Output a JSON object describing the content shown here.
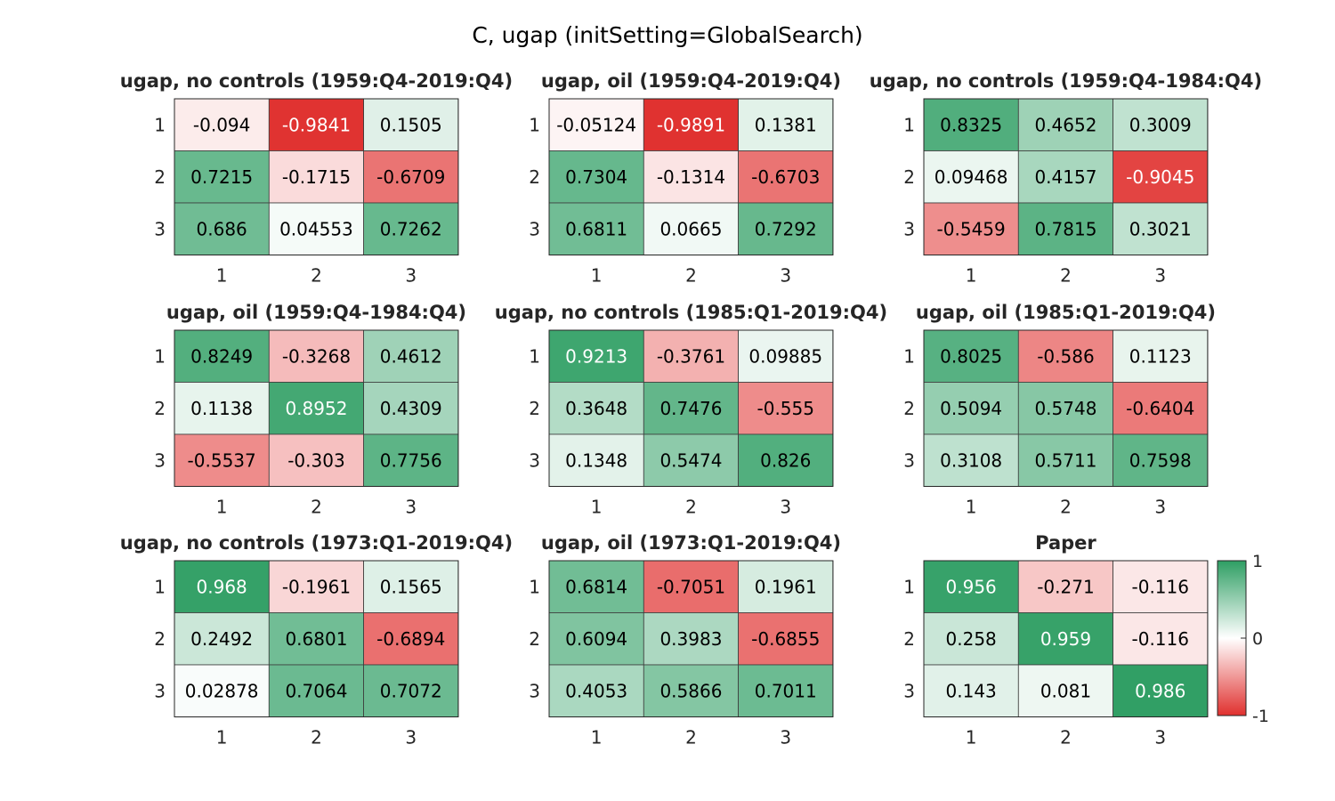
{
  "title": "C, ugap (initSetting=GlobalSearch)",
  "colors": {
    "negative": "#e0302e",
    "zero": "#ffffff",
    "positive": "#2e9e63",
    "dark_text": "#000000",
    "light_text": "#ffffff",
    "axis_text": "#262626"
  },
  "colorbar": {
    "ticks": [
      "1",
      "0",
      "-1"
    ],
    "min": -1,
    "max": 1
  },
  "chart_data": [
    {
      "type": "heatmap",
      "title": "ugap, no controls (1959:Q4-2019:Q4)",
      "x_ticks": [
        "1",
        "2",
        "3"
      ],
      "y_ticks": [
        "1",
        "2",
        "3"
      ],
      "values": [
        [
          -0.094,
          -0.9841,
          0.1505
        ],
        [
          0.7215,
          -0.1715,
          -0.6709
        ],
        [
          0.686,
          0.04553,
          0.7262
        ]
      ],
      "labels": [
        [
          "-0.094",
          "-0.9841",
          "0.1505"
        ],
        [
          "0.7215",
          "-0.1715",
          "-0.6709"
        ],
        [
          "0.686",
          "0.04553",
          "0.7262"
        ]
      ]
    },
    {
      "type": "heatmap",
      "title": "ugap, oil (1959:Q4-2019:Q4)",
      "x_ticks": [
        "1",
        "2",
        "3"
      ],
      "y_ticks": [
        "1",
        "2",
        "3"
      ],
      "values": [
        [
          -0.05124,
          -0.9891,
          0.1381
        ],
        [
          0.7304,
          -0.1314,
          -0.6703
        ],
        [
          0.6811,
          0.0665,
          0.7292
        ]
      ],
      "labels": [
        [
          "-0.05124",
          "-0.9891",
          "0.1381"
        ],
        [
          "0.7304",
          "-0.1314",
          "-0.6703"
        ],
        [
          "0.6811",
          "0.0665",
          "0.7292"
        ]
      ]
    },
    {
      "type": "heatmap",
      "title": "ugap, no controls (1959:Q4-1984:Q4)",
      "x_ticks": [
        "1",
        "2",
        "3"
      ],
      "y_ticks": [
        "1",
        "2",
        "3"
      ],
      "values": [
        [
          0.8325,
          0.4652,
          0.3009
        ],
        [
          0.09468,
          0.4157,
          -0.9045
        ],
        [
          -0.5459,
          0.7815,
          0.3021
        ]
      ],
      "labels": [
        [
          "0.8325",
          "0.4652",
          "0.3009"
        ],
        [
          "0.09468",
          "0.4157",
          "-0.9045"
        ],
        [
          "-0.5459",
          "0.7815",
          "0.3021"
        ]
      ]
    },
    {
      "type": "heatmap",
      "title": "ugap, oil (1959:Q4-1984:Q4)",
      "x_ticks": [
        "1",
        "2",
        "3"
      ],
      "y_ticks": [
        "1",
        "2",
        "3"
      ],
      "values": [
        [
          0.8249,
          -0.3268,
          0.4612
        ],
        [
          0.1138,
          0.8952,
          0.4309
        ],
        [
          -0.5537,
          -0.303,
          0.7756
        ]
      ],
      "labels": [
        [
          "0.8249",
          "-0.3268",
          "0.4612"
        ],
        [
          "0.1138",
          "0.8952",
          "0.4309"
        ],
        [
          "-0.5537",
          "-0.303",
          "0.7756"
        ]
      ]
    },
    {
      "type": "heatmap",
      "title": "ugap, no controls (1985:Q1-2019:Q4)",
      "x_ticks": [
        "1",
        "2",
        "3"
      ],
      "y_ticks": [
        "1",
        "2",
        "3"
      ],
      "values": [
        [
          0.9213,
          -0.3761,
          0.09885
        ],
        [
          0.3648,
          0.7476,
          -0.555
        ],
        [
          0.1348,
          0.5474,
          0.826
        ]
      ],
      "labels": [
        [
          "0.9213",
          "-0.3761",
          "0.09885"
        ],
        [
          "0.3648",
          "0.7476",
          "-0.555"
        ],
        [
          "0.1348",
          "0.5474",
          "0.826"
        ]
      ]
    },
    {
      "type": "heatmap",
      "title": "ugap, oil (1985:Q1-2019:Q4)",
      "x_ticks": [
        "1",
        "2",
        "3"
      ],
      "y_ticks": [
        "1",
        "2",
        "3"
      ],
      "values": [
        [
          0.8025,
          -0.586,
          0.1123
        ],
        [
          0.5094,
          0.5748,
          -0.6404
        ],
        [
          0.3108,
          0.5711,
          0.7598
        ]
      ],
      "labels": [
        [
          "0.8025",
          "-0.586",
          "0.1123"
        ],
        [
          "0.5094",
          "0.5748",
          "-0.6404"
        ],
        [
          "0.3108",
          "0.5711",
          "0.7598"
        ]
      ]
    },
    {
      "type": "heatmap",
      "title": "ugap, no controls (1973:Q1-2019:Q4)",
      "x_ticks": [
        "1",
        "2",
        "3"
      ],
      "y_ticks": [
        "1",
        "2",
        "3"
      ],
      "values": [
        [
          0.968,
          -0.1961,
          0.1565
        ],
        [
          0.2492,
          0.6801,
          -0.6894
        ],
        [
          0.02878,
          0.7064,
          0.7072
        ]
      ],
      "labels": [
        [
          "0.968",
          "-0.1961",
          "0.1565"
        ],
        [
          "0.2492",
          "0.6801",
          "-0.6894"
        ],
        [
          "0.02878",
          "0.7064",
          "0.7072"
        ]
      ]
    },
    {
      "type": "heatmap",
      "title": "ugap, oil (1973:Q1-2019:Q4)",
      "x_ticks": [
        "1",
        "2",
        "3"
      ],
      "y_ticks": [
        "1",
        "2",
        "3"
      ],
      "values": [
        [
          0.6814,
          -0.7051,
          0.1961
        ],
        [
          0.6094,
          0.3983,
          -0.6855
        ],
        [
          0.4053,
          0.5866,
          0.7011
        ]
      ],
      "labels": [
        [
          "0.6814",
          "-0.7051",
          "0.1961"
        ],
        [
          "0.6094",
          "0.3983",
          "-0.6855"
        ],
        [
          "0.4053",
          "0.5866",
          "0.7011"
        ]
      ]
    },
    {
      "type": "heatmap",
      "title": "Paper",
      "x_ticks": [
        "1",
        "2",
        "3"
      ],
      "y_ticks": [
        "1",
        "2",
        "3"
      ],
      "values": [
        [
          0.956,
          -0.271,
          -0.116
        ],
        [
          0.258,
          0.959,
          -0.116
        ],
        [
          0.143,
          0.081,
          0.986
        ]
      ],
      "labels": [
        [
          "0.956",
          "-0.271",
          "-0.116"
        ],
        [
          "0.258",
          "0.959",
          "-0.116"
        ],
        [
          "0.143",
          "0.081",
          "0.986"
        ]
      ]
    }
  ]
}
